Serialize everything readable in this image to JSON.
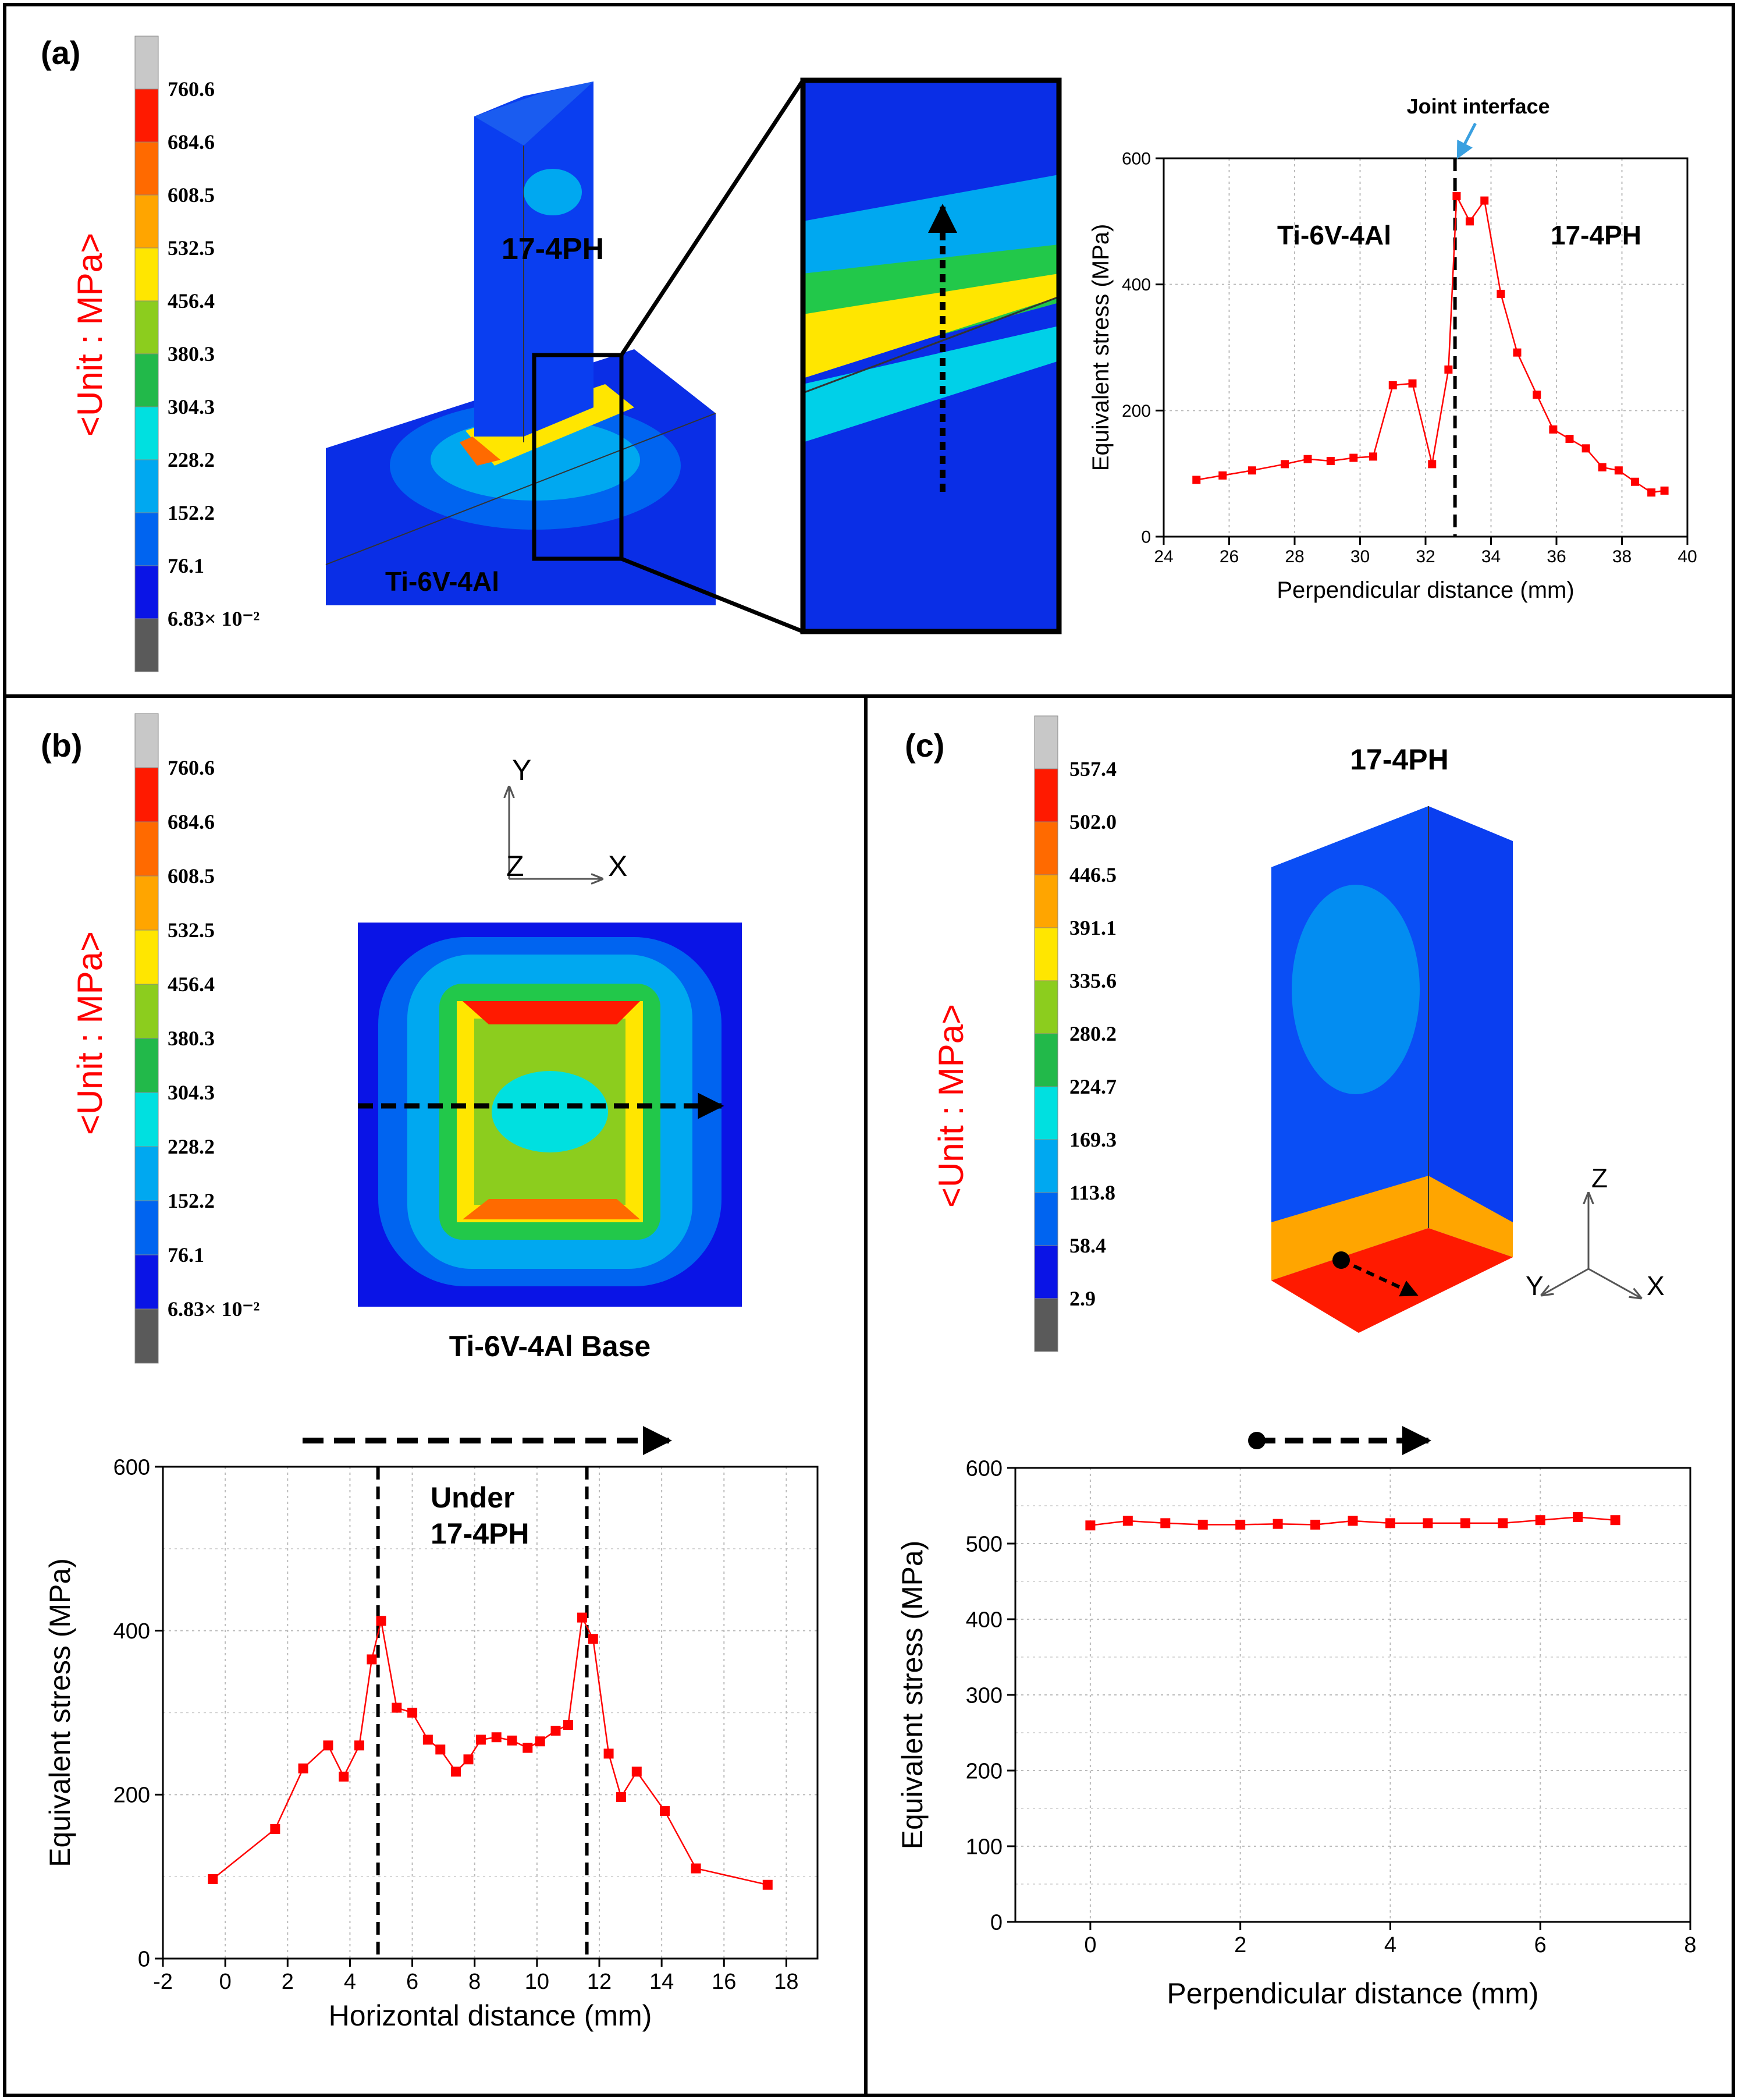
{
  "panels": {
    "a": {
      "label": "(a)",
      "unit_label": "<Unit : MPa>",
      "colorbar": {
        "ticks": [
          "760.6",
          "684.6",
          "608.5",
          "532.5",
          "456.4",
          "380.3",
          "304.3",
          "228.2",
          "152.2",
          "76.1",
          "6.83× 10⁻²"
        ],
        "colors": [
          "#c8c8c8",
          "#ff1a00",
          "#ff6a00",
          "#ffa500",
          "#ffe600",
          "#8ccd1e",
          "#22b94a",
          "#00e0e0",
          "#00a8f0",
          "#0064f0",
          "#0a14e6",
          "#5a5a5a"
        ]
      },
      "model_labels": {
        "top": "17-4PH",
        "base": "Ti-6V-4Al"
      }
    },
    "b": {
      "label": "(b)",
      "unit_label": "<Unit : MPa>",
      "colorbar": {
        "ticks": [
          "760.6",
          "684.6",
          "608.5",
          "532.5",
          "456.4",
          "380.3",
          "304.3",
          "228.2",
          "152.2",
          "76.1",
          "6.83× 10⁻²"
        ],
        "colors": [
          "#c8c8c8",
          "#ff1a00",
          "#ff6a00",
          "#ffa500",
          "#ffe600",
          "#8ccd1e",
          "#22b94a",
          "#00e0e0",
          "#00a8f0",
          "#0064f0",
          "#0a14e6",
          "#5a5a5a"
        ]
      },
      "axes_labels": {
        "y": "Y",
        "z": "Z",
        "x": "X"
      },
      "model_caption": "Ti-6V-4Al Base"
    },
    "c": {
      "label": "(c)",
      "unit_label": "<Unit : MPa>",
      "colorbar": {
        "ticks": [
          "557.4",
          "502.0",
          "446.5",
          "391.1",
          "335.6",
          "280.2",
          "224.7",
          "169.3",
          "113.8",
          "58.4",
          "2.9"
        ],
        "colors": [
          "#c8c8c8",
          "#ff1a00",
          "#ff6a00",
          "#ffa500",
          "#ffe600",
          "#8ccd1e",
          "#22b94a",
          "#00e0e0",
          "#00a8f0",
          "#0064f0",
          "#0a14e6",
          "#5a5a5a"
        ]
      },
      "model_title": "17-4PH",
      "axes_labels": {
        "z": "Z",
        "y": "Y",
        "x": "X"
      }
    }
  },
  "chart_data": [
    {
      "id": "a",
      "type": "line",
      "xlabel": "Perpendicular distance (mm)",
      "ylabel": "Equivalent stress (MPa)",
      "xlim": [
        24,
        40
      ],
      "ylim": [
        0,
        600
      ],
      "xticks": [
        24,
        26,
        28,
        30,
        32,
        34,
        36,
        38,
        40
      ],
      "yticks": [
        0,
        200,
        400,
        600
      ],
      "color": "#ff0000",
      "annotations": {
        "interface": "Joint interface",
        "left_region": "Ti-6V-4Al",
        "right_region": "17-4PH"
      },
      "interface_x": 32.9,
      "x": [
        25.0,
        25.8,
        26.7,
        27.7,
        28.4,
        29.1,
        29.8,
        30.4,
        31.0,
        31.6,
        32.2,
        32.7,
        32.95,
        33.35,
        33.8,
        34.3,
        34.8,
        35.4,
        35.9,
        36.4,
        36.9,
        37.4,
        37.9,
        38.4,
        38.9,
        39.3
      ],
      "y": [
        90,
        97,
        105,
        115,
        123,
        120,
        125,
        127,
        240,
        243,
        115,
        265,
        540,
        500,
        533,
        385,
        292,
        225,
        170,
        155,
        140,
        110,
        105,
        87,
        70,
        73
      ]
    },
    {
      "id": "b",
      "type": "line",
      "xlabel": "Horizontal distance (mm)",
      "ylabel": "Equivalent stress (MPa)",
      "xlim": [
        -2,
        19
      ],
      "ylim": [
        0,
        600
      ],
      "xticks": [
        -2,
        0,
        2,
        4,
        6,
        8,
        10,
        12,
        14,
        16,
        18
      ],
      "yticks": [
        0,
        200,
        400,
        600
      ],
      "color": "#ff0000",
      "annotation": "Under\n17-4PH",
      "vlines": [
        4.9,
        11.6
      ],
      "x": [
        -0.4,
        1.6,
        2.5,
        3.3,
        3.8,
        4.3,
        4.7,
        5.0,
        5.5,
        6.0,
        6.5,
        6.9,
        7.4,
        7.8,
        8.2,
        8.7,
        9.2,
        9.7,
        10.1,
        10.6,
        11.0,
        11.45,
        11.8,
        12.3,
        12.7,
        13.2,
        14.1,
        15.1,
        17.4
      ],
      "y": [
        97,
        158,
        232,
        260,
        222,
        260,
        365,
        412,
        306,
        300,
        267,
        255,
        228,
        243,
        267,
        270,
        266,
        257,
        265,
        278,
        285,
        416,
        390,
        250,
        197,
        228,
        180,
        110,
        90
      ]
    },
    {
      "id": "c",
      "type": "line",
      "xlabel": "Perpendicular distance (mm)",
      "ylabel": "Equivalent stress (MPa)",
      "xlim": [
        -1,
        8
      ],
      "ylim": [
        0,
        600
      ],
      "xticks": [
        0,
        2,
        4,
        6,
        8
      ],
      "yticks": [
        0,
        100,
        200,
        300,
        400,
        500,
        600
      ],
      "color": "#ff0000",
      "x": [
        0,
        0.5,
        1.0,
        1.5,
        2.0,
        2.5,
        3.0,
        3.5,
        4.0,
        4.5,
        5.0,
        5.5,
        6.0,
        6.5,
        7.0
      ],
      "y": [
        524,
        530,
        527,
        525,
        525,
        526,
        525,
        530,
        527,
        527,
        527,
        527,
        531,
        535,
        531
      ]
    }
  ]
}
